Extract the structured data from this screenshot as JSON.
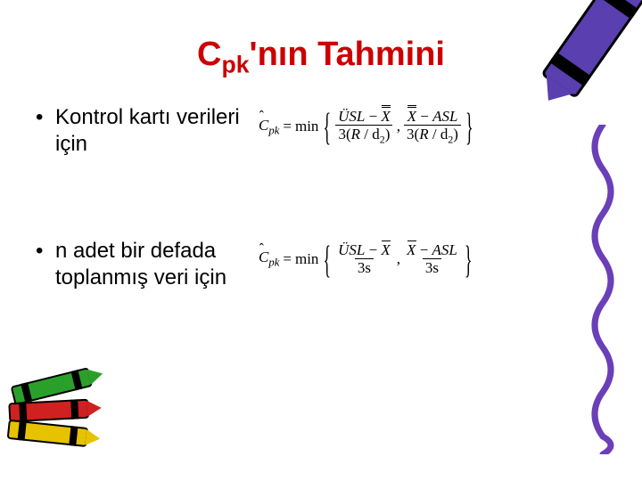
{
  "title": {
    "base": "C",
    "sub": "pk",
    "rest": "'nın Tahmini",
    "color": "#cc0000"
  },
  "bullets": [
    {
      "text": "Kontrol kartı verileri için"
    },
    {
      "text": "n adet bir defada toplanmış veri için"
    }
  ],
  "formulas": [
    {
      "lhs_base": "C",
      "lhs_sub": "pk",
      "eq": "=",
      "fn": "min",
      "term1": {
        "usl": "ÜSL",
        "minus": "−",
        "x": "X",
        "den_l": "3(",
        "rbar": "R",
        "den_r": " / d",
        "d2sub": "2",
        "den_close": ")"
      },
      "comma": ",",
      "term2": {
        "x": "X",
        "minus": "−",
        "asl": "ASL",
        "den_l": "3(",
        "rbar": "R",
        "den_r": " / d",
        "d2sub": "2",
        "den_close": ")"
      }
    },
    {
      "lhs_base": "C",
      "lhs_sub": "pk",
      "eq": "=",
      "fn": "min",
      "term1": {
        "usl": "ÜSL",
        "minus": "−",
        "x": "X",
        "den": "3s"
      },
      "comma": ",",
      "term2": {
        "x": "X",
        "minus": "−",
        "asl": "ASL",
        "den": "3s"
      }
    }
  ],
  "decor": {
    "crayon_top_body": "#5a3fb0",
    "crayon_top_tip": "#5a3fb0",
    "squiggle_color": "#6a3fb8",
    "mini": [
      {
        "body": "#2aa02a",
        "tip": "#2aa02a"
      },
      {
        "body": "#d02020",
        "tip": "#d02020"
      },
      {
        "body": "#e6c200",
        "tip": "#e6c200"
      }
    ]
  }
}
